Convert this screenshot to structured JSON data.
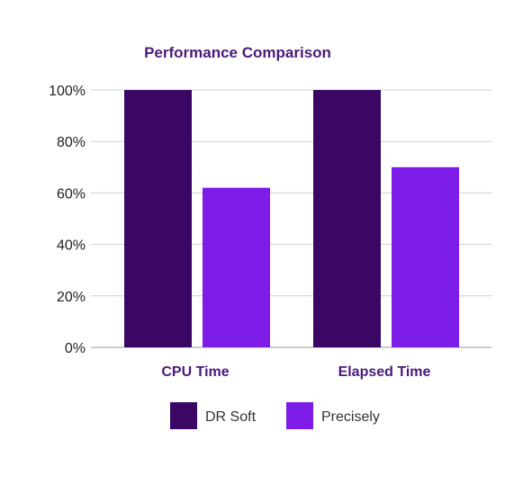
{
  "chart_data": {
    "type": "bar",
    "title": "Performance Comparison",
    "categories": [
      "CPU Time",
      "Elapsed Time"
    ],
    "series": [
      {
        "name": "DR Soft",
        "values": [
          100,
          100
        ],
        "color": "#3b0764"
      },
      {
        "name": "Precisely",
        "values": [
          62,
          70
        ],
        "color": "#7c1ce6"
      }
    ],
    "y_ticks": [
      "0%",
      "20%",
      "40%",
      "60%",
      "80%",
      "100%"
    ],
    "ylim": [
      0,
      100
    ],
    "grid": true,
    "legend_position": "bottom"
  }
}
